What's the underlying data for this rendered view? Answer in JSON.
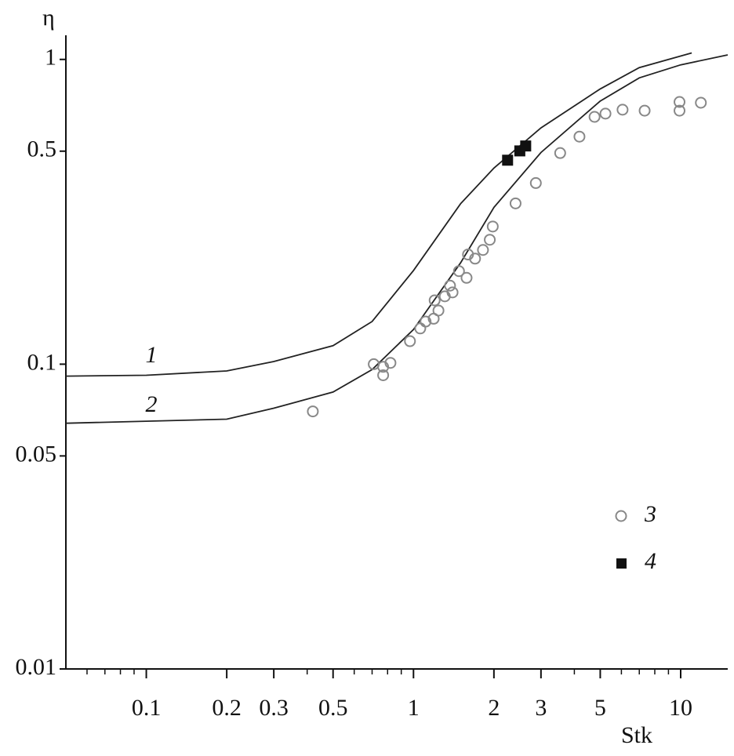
{
  "chart_data": {
    "type": "line",
    "x_label": "Stk",
    "y_label": "η",
    "x_log": true,
    "y_log": true,
    "xlim": [
      0.05,
      15
    ],
    "ylim": [
      0.01,
      1.2
    ],
    "xticks": [
      0.1,
      0.2,
      0.3,
      0.5,
      1,
      2,
      3,
      5,
      10
    ],
    "xminor_ticks": [
      0.06,
      0.07,
      0.08,
      0.09,
      0.4,
      0.6,
      0.7,
      0.8,
      0.9,
      4,
      6,
      7,
      8,
      9
    ],
    "yticks": [
      0.01,
      0.05,
      0.1,
      0.5,
      1
    ],
    "series": [
      {
        "name": "1",
        "type": "line",
        "color": "#222222",
        "x": [
          0.05,
          0.1,
          0.2,
          0.3,
          0.5,
          0.7,
          1,
          1.5,
          2,
          3,
          5,
          7,
          11
        ],
        "values": [
          0.0914,
          0.092,
          0.095,
          0.102,
          0.115,
          0.138,
          0.203,
          0.336,
          0.44,
          0.596,
          0.8,
          0.94,
          1.05
        ]
      },
      {
        "name": "2",
        "type": "line",
        "color": "#222222",
        "x": [
          0.05,
          0.2,
          0.3,
          0.5,
          0.7,
          1,
          1.5,
          2,
          3,
          5,
          7,
          10,
          15
        ],
        "values": [
          0.064,
          0.066,
          0.0717,
          0.081,
          0.096,
          0.13,
          0.215,
          0.327,
          0.495,
          0.73,
          0.87,
          0.96,
          1.035
        ]
      },
      {
        "name": "3",
        "type": "scatter",
        "marker": "circle",
        "color": "#888888",
        "x": [
          0.42,
          0.71,
          0.77,
          0.77,
          0.82,
          0.97,
          1.06,
          1.11,
          1.19,
          1.24,
          1.2,
          1.31,
          1.37,
          1.4,
          1.48,
          1.58,
          1.6,
          1.7,
          1.82,
          1.93,
          1.98,
          2.41,
          2.87,
          3.54,
          4.18,
          4.76,
          5.23,
          6.06,
          7.33,
          9.9,
          9.9,
          11.9
        ],
        "values": [
          0.07,
          0.1,
          0.098,
          0.092,
          0.101,
          0.119,
          0.131,
          0.138,
          0.141,
          0.15,
          0.162,
          0.167,
          0.181,
          0.172,
          0.202,
          0.192,
          0.229,
          0.222,
          0.237,
          0.256,
          0.283,
          0.337,
          0.393,
          0.493,
          0.558,
          0.648,
          0.664,
          0.684,
          0.679,
          0.725,
          0.679,
          0.721
        ]
      },
      {
        "name": "4",
        "type": "scatter",
        "marker": "square",
        "color": "#111111",
        "x": [
          2.25,
          2.5,
          2.63
        ],
        "values": [
          0.467,
          0.501,
          0.52
        ]
      }
    ]
  }
}
